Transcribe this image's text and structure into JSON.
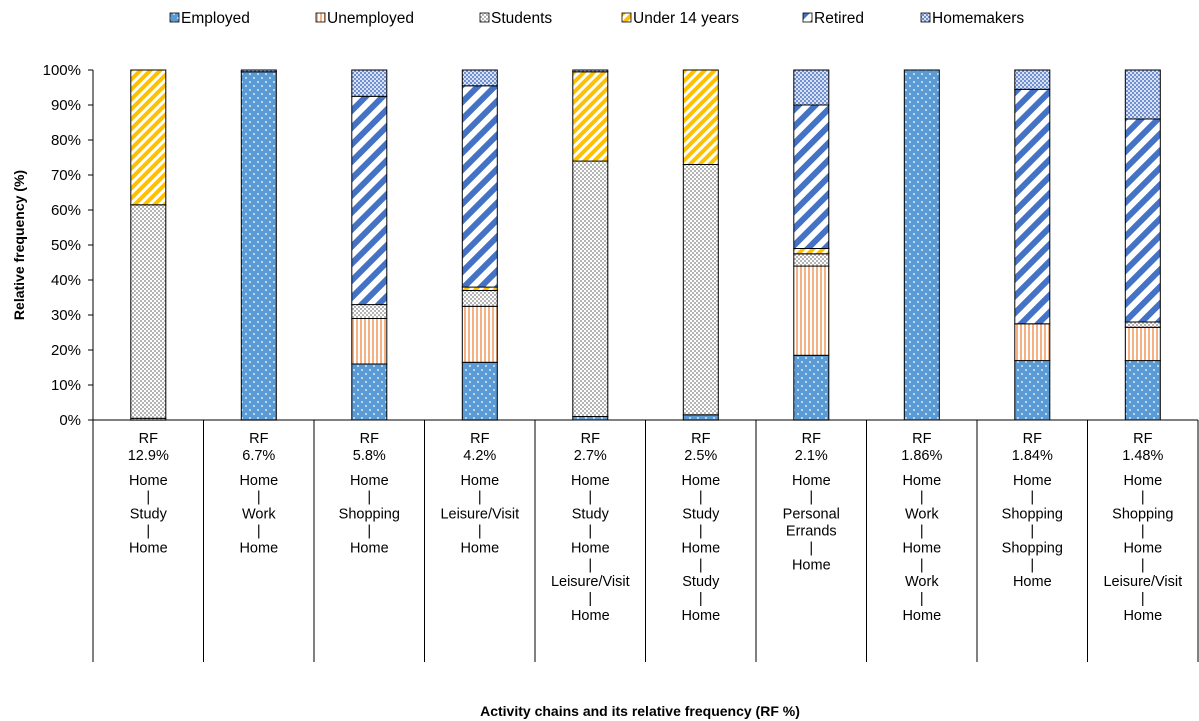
{
  "chart_data": {
    "type": "bar",
    "stacked": true,
    "percent": true,
    "ylabel": "Relative frequency (%)",
    "xlabel": "Activity chains and its relative frequency (RF %)",
    "ylim": [
      0,
      100
    ],
    "yticks": [
      "0%",
      "10%",
      "20%",
      "30%",
      "40%",
      "50%",
      "60%",
      "70%",
      "80%",
      "90%",
      "100%"
    ],
    "legend_position": "top",
    "grid": false,
    "categories": [
      {
        "rf": [
          "RF",
          "12.9%"
        ],
        "chain": [
          "Home",
          "|",
          "Study",
          "|",
          "Home"
        ]
      },
      {
        "rf": [
          "RF",
          "6.7%"
        ],
        "chain": [
          "Home",
          "|",
          "Work",
          "|",
          "Home"
        ]
      },
      {
        "rf": [
          "RF",
          "5.8%"
        ],
        "chain": [
          "Home",
          "|",
          "Shopping",
          "|",
          "Home"
        ]
      },
      {
        "rf": [
          "RF",
          "4.2%"
        ],
        "chain": [
          "Home",
          "|",
          "Leisure/Visit",
          "|",
          "Home"
        ]
      },
      {
        "rf": [
          "RF",
          "2.7%"
        ],
        "chain": [
          "Home",
          "|",
          "Study",
          "|",
          "Home",
          "|",
          "Leisure/Visit",
          "|",
          "Home"
        ]
      },
      {
        "rf": [
          "RF",
          "2.5%"
        ],
        "chain": [
          "Home",
          "|",
          "Study",
          "|",
          "Home",
          "|",
          "Study",
          "|",
          "Home"
        ]
      },
      {
        "rf": [
          "RF",
          "2.1%"
        ],
        "chain": [
          "Home",
          "|",
          "Personal",
          "Errands",
          "|",
          "Home"
        ]
      },
      {
        "rf": [
          "RF",
          "1.86%"
        ],
        "chain": [
          "Home",
          "|",
          "Work",
          "|",
          "Home",
          "|",
          "Work",
          "|",
          "Home"
        ]
      },
      {
        "rf": [
          "RF",
          "1.84%"
        ],
        "chain": [
          "Home",
          "|",
          "Shopping",
          "|",
          "Shopping",
          "|",
          "Home"
        ]
      },
      {
        "rf": [
          "RF",
          "1.48%"
        ],
        "chain": [
          "Home",
          "|",
          "Shopping",
          "|",
          "Home",
          "|",
          "Leisure/Visit",
          "|",
          "Home"
        ]
      }
    ],
    "series": [
      {
        "name": "Employed",
        "color": "#5b9bd5",
        "pattern": "dots",
        "values": [
          0,
          99.5,
          16,
          16.5,
          1,
          1.5,
          18.5,
          100,
          17,
          17
        ]
      },
      {
        "name": "Unemployed",
        "color": "#f4b183",
        "pattern": "vertical-lines",
        "values": [
          0.5,
          0,
          13,
          16,
          0,
          0,
          25.5,
          0,
          10.5,
          9.5
        ]
      },
      {
        "name": "Students",
        "color": "#d9d9d9",
        "pattern": "fine-dots",
        "values": [
          61,
          0,
          4,
          4.5,
          73,
          71.5,
          3.5,
          0,
          0,
          1.5
        ]
      },
      {
        "name": "Under 14 years",
        "color": "#ffd34d",
        "pattern": "diagonal-stripes",
        "values": [
          38.5,
          0,
          0,
          1,
          25.5,
          27,
          1.5,
          0,
          0,
          0
        ]
      },
      {
        "name": "Retired",
        "color": "#4472c4",
        "pattern": "wide-diagonal-stripes",
        "values": [
          0,
          0,
          59.5,
          57.5,
          0,
          0,
          41,
          0,
          67,
          58
        ]
      },
      {
        "name": "Homemakers",
        "color": "#8faadc",
        "pattern": "checker",
        "values": [
          0,
          0.5,
          7.5,
          4.5,
          0.5,
          0,
          10,
          0,
          5.5,
          14
        ]
      }
    ]
  }
}
